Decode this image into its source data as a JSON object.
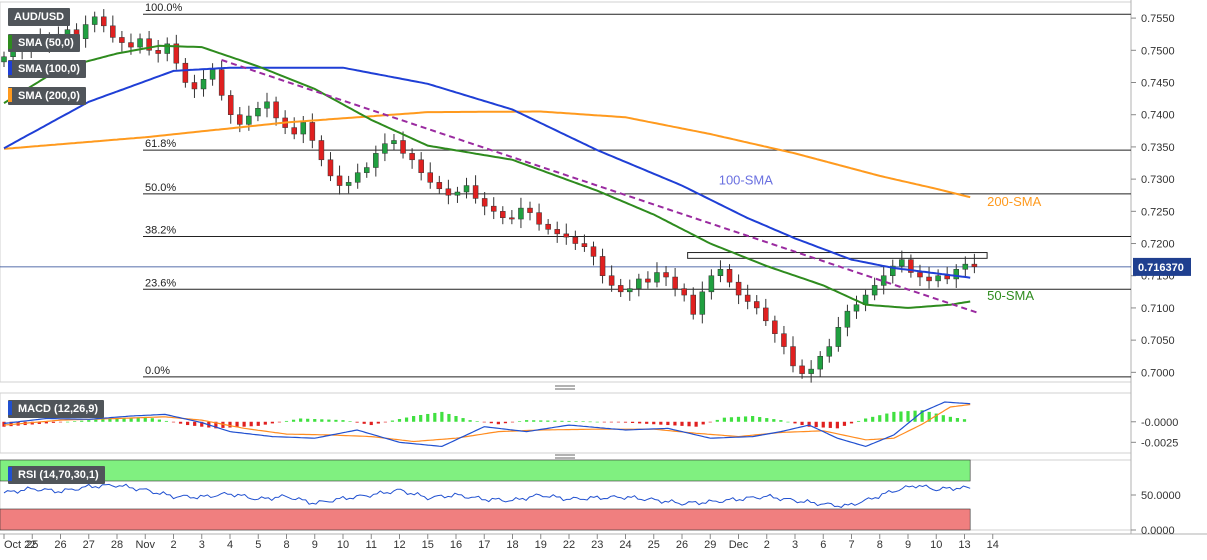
{
  "instrument": "AUD/USD",
  "indicator_labels": {
    "sma50": "SMA (50,0)",
    "sma100": "SMA (100,0)",
    "sma200": "SMA (200,0)",
    "macd": "MACD (12,26,9)",
    "rsi": "RSI (14,70,30,1)"
  },
  "colors": {
    "bull": "#20a040",
    "bear": "#e02020",
    "sma50": "#2e8b1e",
    "sma100": "#1f3fd6",
    "sma200": "#ff9a1e",
    "trendline": "#9a2aa0",
    "macd_line": "#2050d0",
    "signal_line": "#ff8c20",
    "hist_pos": "#40e040",
    "hist_neg": "#e02020",
    "rsi_line": "#2050d0",
    "rsi_overbought_zone": "#80f080",
    "rsi_oversold_zone": "#f07f7f",
    "price_tag": "#1f3f8f"
  },
  "chart_data": [
    {
      "type": "candlestick",
      "title": "AUD/USD",
      "ylim": [
        0.6985,
        0.7575
      ],
      "y_ticks": [
        "0.7000",
        "0.7050",
        "0.7100",
        "0.7150",
        "0.7200",
        "0.7250",
        "0.7300",
        "0.7350",
        "0.7400",
        "0.7450",
        "0.7500",
        "0.7550"
      ],
      "x_ticks": [
        "Oct 22",
        "25",
        "26",
        "27",
        "28",
        "Nov",
        "2",
        "3",
        "4",
        "5",
        "8",
        "9",
        "10",
        "11",
        "12",
        "15",
        "16",
        "17",
        "18",
        "19",
        "22",
        "23",
        "24",
        "25",
        "26",
        "29",
        "Dec",
        "2",
        "3",
        "6",
        "7",
        "8",
        "9",
        "10",
        "13",
        "14"
      ],
      "current_price": "0.716370",
      "grid": false,
      "fibonacci": [
        {
          "label": "100.0%",
          "value": 0.7556
        },
        {
          "label": "61.8%",
          "value": 0.7345
        },
        {
          "label": "50.0%",
          "value": 0.7277
        },
        {
          "label": "38.2%",
          "value": 0.7211
        },
        {
          "label": "23.6%",
          "value": 0.7129
        },
        {
          "label": "0.0%",
          "value": 0.6993
        }
      ],
      "moving_averages": [
        {
          "name": "200-SMA",
          "period": 200,
          "points": [
            [
              0,
              0.7347
            ],
            [
              5,
              0.7365
            ],
            [
              10,
              0.7388
            ],
            [
              15,
              0.7404
            ],
            [
              19,
              0.7405
            ],
            [
              22,
              0.7396
            ],
            [
              25,
              0.737
            ],
            [
              28,
              0.734
            ],
            [
              31,
              0.7305
            ],
            [
              33,
              0.7285
            ],
            [
              34.2,
              0.7272
            ]
          ]
        },
        {
          "name": "100-SMA",
          "period": 100,
          "points": [
            [
              0,
              0.7348
            ],
            [
              3,
              0.742
            ],
            [
              6,
              0.7468
            ],
            [
              8,
              0.7473
            ],
            [
              12,
              0.7473
            ],
            [
              15,
              0.7448
            ],
            [
              18,
              0.7408
            ],
            [
              21,
              0.7345
            ],
            [
              24,
              0.729
            ],
            [
              26.3,
              0.724
            ],
            [
              28,
              0.7208
            ],
            [
              30,
              0.7175
            ],
            [
              31.5,
              0.7162
            ],
            [
              34.2,
              0.7147
            ]
          ]
        },
        {
          "name": "50-SMA",
          "period": 50,
          "points": [
            [
              0,
              0.7418
            ],
            [
              2,
              0.7472
            ],
            [
              4,
              0.7495
            ],
            [
              5.5,
              0.7507
            ],
            [
              7,
              0.7505
            ],
            [
              9,
              0.7475
            ],
            [
              11,
              0.744
            ],
            [
              13,
              0.7392
            ],
            [
              15,
              0.7352
            ],
            [
              18,
              0.733
            ],
            [
              21,
              0.7282
            ],
            [
              23,
              0.7245
            ],
            [
              25,
              0.72
            ],
            [
              27,
              0.7165
            ],
            [
              29,
              0.7135
            ],
            [
              30.5,
              0.7105
            ],
            [
              32,
              0.71
            ],
            [
              33.5,
              0.7105
            ],
            [
              34.2,
              0.711
            ]
          ]
        }
      ],
      "trendline": {
        "from": [
          7.7,
          0.7485
        ],
        "to": [
          34.5,
          0.7092
        ],
        "style": "dashed"
      },
      "resistance_zone": {
        "from_x": 24.2,
        "to_x": 34.8,
        "top": 0.7186,
        "bottom": 0.7177
      },
      "annotations": [
        {
          "text": "100-SMA",
          "x": 25.3,
          "y": 0.7292,
          "color": "#6a70e0"
        },
        {
          "text": "200-SMA",
          "x": 34.8,
          "y": 0.7258,
          "color": "#ff9a1e"
        },
        {
          "text": "50-SMA",
          "x": 34.8,
          "y": 0.7112,
          "color": "#2e8b1e"
        }
      ],
      "candle_closes": [
        0.749,
        0.7505,
        0.7498,
        0.7512,
        0.752,
        0.751,
        0.7525,
        0.7532,
        0.7518,
        0.754,
        0.7552,
        0.7538,
        0.752,
        0.7512,
        0.7505,
        0.7518,
        0.75,
        0.7495,
        0.751,
        0.748,
        0.745,
        0.744,
        0.7455,
        0.747,
        0.743,
        0.74,
        0.7385,
        0.7398,
        0.741,
        0.742,
        0.7395,
        0.738,
        0.737,
        0.7388,
        0.736,
        0.733,
        0.7305,
        0.729,
        0.7295,
        0.731,
        0.7318,
        0.734,
        0.7355,
        0.736,
        0.734,
        0.733,
        0.731,
        0.7295,
        0.7285,
        0.7275,
        0.728,
        0.729,
        0.727,
        0.7258,
        0.725,
        0.724,
        0.7238,
        0.7255,
        0.7248,
        0.723,
        0.7222,
        0.7215,
        0.721,
        0.72,
        0.7195,
        0.718,
        0.715,
        0.7135,
        0.7125,
        0.713,
        0.7145,
        0.714,
        0.7155,
        0.7148,
        0.713,
        0.712,
        0.709,
        0.7125,
        0.715,
        0.716,
        0.714,
        0.712,
        0.711,
        0.71,
        0.708,
        0.706,
        0.704,
        0.701,
        0.6998,
        0.7005,
        0.7025,
        0.704,
        0.707,
        0.7095,
        0.7105,
        0.712,
        0.7135,
        0.715,
        0.7165,
        0.7175,
        0.7155,
        0.7148,
        0.7142,
        0.715,
        0.7145,
        0.716,
        0.7168,
        0.7164
      ]
    },
    {
      "type": "line",
      "title": "MACD (12,26,9)",
      "ylim": [
        -0.0038,
        0.0035
      ],
      "y_ticks": [
        "-0.0000",
        "-0.0025"
      ],
      "macd_line": [
        [
          0,
          -0.0002
        ],
        [
          1.5,
          0.0004
        ],
        [
          3,
          0.0003
        ],
        [
          4.5,
          0.0007
        ],
        [
          5.7,
          0.0009
        ],
        [
          7,
          -0.0001
        ],
        [
          8,
          -0.0012
        ],
        [
          9.5,
          -0.0018
        ],
        [
          11,
          -0.002
        ],
        [
          12.5,
          -0.001
        ],
        [
          14,
          -0.0025
        ],
        [
          15.5,
          -0.003
        ],
        [
          17,
          -0.0006
        ],
        [
          18.5,
          -0.0012
        ],
        [
          20,
          -0.0004
        ],
        [
          22,
          -0.001
        ],
        [
          23.5,
          -0.0008
        ],
        [
          25,
          -0.002
        ],
        [
          26.5,
          -0.0018
        ],
        [
          27.5,
          -0.0012
        ],
        [
          28.5,
          -0.0004
        ],
        [
          29.5,
          -0.002
        ],
        [
          30.5,
          -0.003
        ],
        [
          31.5,
          -0.0016
        ],
        [
          32.5,
          0.0012
        ],
        [
          33.3,
          0.0024
        ],
        [
          34.2,
          0.0022
        ]
      ],
      "signal_line": [
        [
          0,
          -0.0004
        ],
        [
          2,
          0.0002
        ],
        [
          4,
          0.0004
        ],
        [
          5.7,
          0.0006
        ],
        [
          7,
          0.0002
        ],
        [
          8.5,
          -0.0008
        ],
        [
          10,
          -0.0015
        ],
        [
          11.5,
          -0.0016
        ],
        [
          13,
          -0.0018
        ],
        [
          14.5,
          -0.0024
        ],
        [
          16,
          -0.002
        ],
        [
          17.5,
          -0.0012
        ],
        [
          19,
          -0.001
        ],
        [
          21,
          -0.0009
        ],
        [
          23,
          -0.0009
        ],
        [
          24.5,
          -0.0014
        ],
        [
          26,
          -0.0018
        ],
        [
          27.5,
          -0.0013
        ],
        [
          29,
          -0.0011
        ],
        [
          30.5,
          -0.0022
        ],
        [
          31.5,
          -0.002
        ],
        [
          32.5,
          -0.0003
        ],
        [
          33.5,
          0.0018
        ],
        [
          34.2,
          0.0021
        ]
      ],
      "histogram_ranges": [
        [
          0,
          -0.0006
        ],
        [
          3,
          0.0002
        ],
        [
          5,
          0.0006
        ],
        [
          6.5,
          -0.0004
        ],
        [
          7.5,
          -0.0008
        ],
        [
          9,
          -0.0005
        ],
        [
          10.5,
          0.0004
        ],
        [
          12,
          0.0002
        ],
        [
          13,
          -0.0004
        ],
        [
          14.5,
          0.0007
        ],
        [
          15.5,
          0.0012
        ],
        [
          16.5,
          0.0002
        ],
        [
          17.5,
          -0.0003
        ],
        [
          18.5,
          0.0002
        ],
        [
          20,
          0.0001
        ],
        [
          22,
          -0.0001
        ],
        [
          23.5,
          -0.0004
        ],
        [
          24.5,
          -0.0006
        ],
        [
          25.5,
          0.0005
        ],
        [
          26.5,
          0.0007
        ],
        [
          27.5,
          0.0002
        ],
        [
          28.5,
          -0.0006
        ],
        [
          29.5,
          -0.0008
        ],
        [
          30.5,
          0.0004
        ],
        [
          31.5,
          0.0012
        ],
        [
          32.5,
          0.0014
        ],
        [
          33.5,
          0.0006
        ],
        [
          34.2,
          0.0002
        ]
      ]
    },
    {
      "type": "line",
      "title": "RSI (14,70,30,1)",
      "ylim": [
        0,
        100
      ],
      "y_ticks": [
        "50.0000",
        "0.0000"
      ],
      "overbought": 70,
      "oversold": 30,
      "rsi_line": [
        [
          0,
          53
        ],
        [
          1,
          59
        ],
        [
          2,
          55
        ],
        [
          3,
          62
        ],
        [
          4,
          64
        ],
        [
          5,
          57
        ],
        [
          6,
          48
        ],
        [
          7,
          47
        ],
        [
          8,
          52
        ],
        [
          9,
          44
        ],
        [
          10,
          48
        ],
        [
          11,
          38
        ],
        [
          12,
          45
        ],
        [
          13,
          50
        ],
        [
          14,
          57
        ],
        [
          15,
          46
        ],
        [
          16,
          50
        ],
        [
          17,
          44
        ],
        [
          18,
          42
        ],
        [
          19,
          50
        ],
        [
          20,
          44
        ],
        [
          21,
          46
        ],
        [
          22,
          47
        ],
        [
          23,
          43
        ],
        [
          24,
          38
        ],
        [
          25,
          40
        ],
        [
          26,
          44
        ],
        [
          27,
          48
        ],
        [
          28,
          42
        ],
        [
          29,
          37
        ],
        [
          29.8,
          34
        ],
        [
          30.5,
          42
        ],
        [
          31.5,
          56
        ],
        [
          32.3,
          64
        ],
        [
          33,
          58
        ],
        [
          33.7,
          60
        ],
        [
          34.2,
          60
        ]
      ]
    }
  ]
}
